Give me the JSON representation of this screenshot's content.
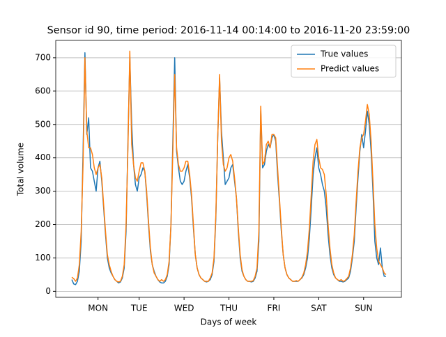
{
  "chart_data": {
    "type": "line",
    "title": "Sensor id 90, time period: 2016-11-14 00:14:00 to 2016-11-20 23:59:00",
    "x_label": "Days of week",
    "y_label": "Total volume",
    "x": [
      0,
      1,
      2,
      3,
      4,
      5,
      6,
      7,
      8,
      9,
      10,
      11,
      12,
      13,
      14,
      15,
      16,
      17,
      18,
      19,
      20,
      21,
      22,
      23,
      24,
      25,
      26,
      27,
      28,
      29,
      30,
      31,
      32,
      33,
      34,
      35,
      36,
      37,
      38,
      39,
      40,
      41,
      42,
      43,
      44,
      45,
      46,
      47,
      48,
      49,
      50,
      51,
      52,
      53,
      54,
      55,
      56,
      57,
      58,
      59,
      60,
      61,
      62,
      63,
      64,
      65,
      66,
      67,
      68,
      69,
      70,
      71,
      72,
      73,
      74,
      75,
      76,
      77,
      78,
      79,
      80,
      81,
      82,
      83,
      84,
      85,
      86,
      87,
      88,
      89,
      90,
      91,
      92,
      93,
      94,
      95,
      96,
      97,
      98,
      99,
      100,
      101,
      102,
      103,
      104,
      105,
      106,
      107,
      108,
      109,
      110,
      111,
      112,
      113,
      114,
      115,
      116,
      117,
      118,
      119,
      120,
      121,
      122,
      123,
      124,
      125,
      126,
      127,
      128,
      129,
      130,
      131,
      132,
      133,
      134,
      135,
      136,
      137,
      138,
      139,
      140,
      141,
      142,
      143,
      144,
      145,
      146,
      147,
      148,
      149,
      150,
      151,
      152,
      153,
      154,
      155,
      156,
      157,
      158,
      159,
      160,
      161,
      162,
      163,
      164,
      165,
      166,
      167,
      168
    ],
    "series": [
      {
        "name": "True values",
        "color": "#1f77b4",
        "values": [
          35,
          22,
          20,
          30,
          60,
          150,
          420,
          715,
          470,
          520,
          370,
          360,
          330,
          300,
          370,
          390,
          330,
          250,
          170,
          100,
          70,
          55,
          45,
          35,
          30,
          25,
          28,
          40,
          70,
          180,
          450,
          700,
          500,
          380,
          320,
          300,
          340,
          350,
          370,
          360,
          290,
          200,
          120,
          80,
          60,
          45,
          35,
          28,
          25,
          25,
          30,
          45,
          80,
          200,
          450,
          700,
          420,
          370,
          330,
          320,
          330,
          360,
          380,
          340,
          280,
          190,
          110,
          70,
          50,
          40,
          35,
          30,
          28,
          30,
          35,
          50,
          90,
          220,
          460,
          640,
          480,
          400,
          320,
          330,
          340,
          370,
          380,
          330,
          280,
          180,
          100,
          60,
          45,
          35,
          30,
          30,
          28,
          30,
          40,
          60,
          150,
          540,
          370,
          380,
          420,
          440,
          430,
          460,
          470,
          450,
          350,
          270,
          180,
          110,
          70,
          50,
          40,
          35,
          30,
          30,
          30,
          30,
          35,
          40,
          50,
          70,
          100,
          160,
          250,
          350,
          400,
          430,
          370,
          350,
          320,
          300,
          250,
          170,
          110,
          70,
          50,
          40,
          35,
          30,
          30,
          28,
          30,
          35,
          40,
          60,
          100,
          150,
          250,
          340,
          420,
          470,
          430,
          480,
          540,
          500,
          420,
          300,
          150,
          100,
          80,
          130,
          70,
          45,
          45
        ]
      },
      {
        "name": "Predict values",
        "color": "#ff7f0e",
        "values": [
          42,
          38,
          30,
          40,
          80,
          180,
          380,
          700,
          480,
          430,
          430,
          410,
          370,
          350,
          370,
          380,
          340,
          260,
          180,
          110,
          80,
          60,
          45,
          35,
          30,
          28,
          30,
          45,
          80,
          200,
          430,
          720,
          440,
          380,
          340,
          330,
          360,
          385,
          385,
          360,
          300,
          210,
          130,
          80,
          55,
          45,
          35,
          30,
          35,
          30,
          35,
          50,
          90,
          200,
          420,
          650,
          430,
          380,
          360,
          360,
          370,
          390,
          390,
          350,
          290,
          200,
          110,
          70,
          50,
          40,
          35,
          30,
          30,
          30,
          40,
          55,
          100,
          230,
          460,
          650,
          450,
          380,
          360,
          370,
          400,
          410,
          390,
          340,
          280,
          190,
          110,
          65,
          45,
          35,
          30,
          30,
          30,
          32,
          45,
          70,
          180,
          555,
          380,
          390,
          440,
          450,
          430,
          470,
          470,
          460,
          370,
          280,
          190,
          110,
          70,
          50,
          40,
          35,
          30,
          30,
          32,
          30,
          35,
          42,
          55,
          80,
          120,
          190,
          290,
          390,
          440,
          455,
          400,
          370,
          365,
          350,
          290,
          200,
          130,
          80,
          55,
          40,
          35,
          32,
          35,
          30,
          32,
          38,
          45,
          70,
          110,
          170,
          270,
          360,
          430,
          460,
          470,
          510,
          560,
          530,
          450,
          330,
          200,
          130,
          90,
          80,
          70,
          55,
          50
        ]
      }
    ],
    "xlim": [
      -8.6,
      176.2
    ],
    "ylim": [
      -18,
      752
    ],
    "xticks": [
      {
        "value": 14,
        "label": "MON"
      },
      {
        "value": 36,
        "label": "TUE"
      },
      {
        "value": 60,
        "label": "WED"
      },
      {
        "value": 84,
        "label": "THU"
      },
      {
        "value": 108,
        "label": "FRI"
      },
      {
        "value": 132,
        "label": "SAT"
      },
      {
        "value": 156,
        "label": "SUN"
      }
    ],
    "yticks": [
      0,
      100,
      200,
      300,
      400,
      500,
      600,
      700
    ],
    "grid": "y",
    "legend": "upper right"
  }
}
